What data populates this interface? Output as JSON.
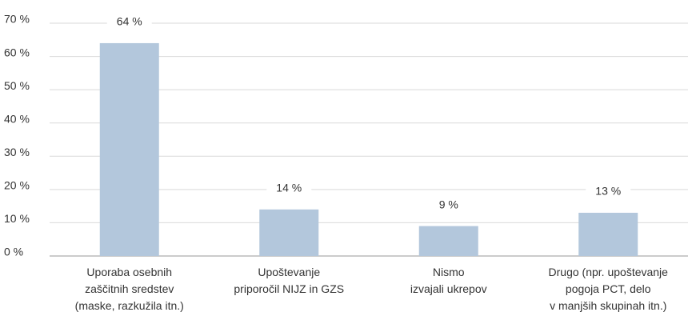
{
  "chart_data": {
    "type": "bar",
    "categories": [
      "Uporaba osebnih\nzaščitnih sredstev\n(maske, razkužila itn.)",
      "Upoštevanje\npriporočil NIJZ in GZS",
      "Nismo\nizvajali ukrepov",
      "Drugo (npr. upoštevanje\npogoja PCT, delo\nv manjših skupinah itn.)"
    ],
    "values": [
      64,
      14,
      9,
      13
    ],
    "value_labels": [
      "64 %",
      "14 %",
      "9 %",
      "13 %"
    ],
    "color": "#b3c7dc",
    "ylim": [
      0,
      70
    ],
    "yticks": [
      {
        "value": 0,
        "label": "0 %"
      },
      {
        "value": 10,
        "label": "10 %"
      },
      {
        "value": 20,
        "label": "20 %"
      },
      {
        "value": 30,
        "label": "30 %"
      },
      {
        "value": 40,
        "label": "40 %"
      },
      {
        "value": 50,
        "label": "50 %"
      },
      {
        "value": 60,
        "label": "60 %"
      },
      {
        "value": 70,
        "label": "70 %"
      }
    ],
    "grid": true
  }
}
